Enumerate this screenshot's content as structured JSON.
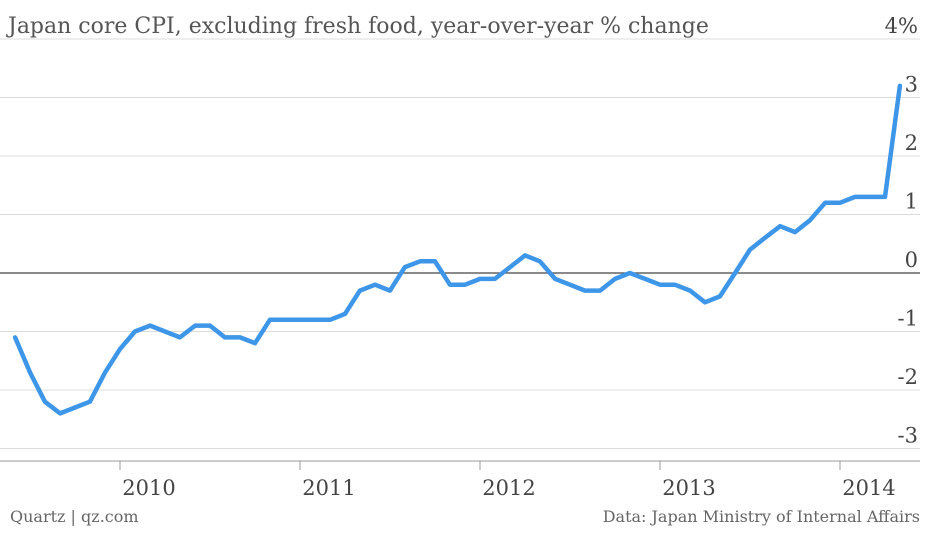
{
  "chart_data": {
    "type": "line",
    "title": "Japan core CPI, excluding fresh food, year-over-year % change",
    "xlabel": "",
    "ylabel": "",
    "ylim": [
      -3.2,
      4
    ],
    "y_ticks": [
      {
        "value": 4,
        "label": "4%"
      },
      {
        "value": 3,
        "label": "3"
      },
      {
        "value": 2,
        "label": "2"
      },
      {
        "value": 1,
        "label": "1"
      },
      {
        "value": 0,
        "label": "0"
      },
      {
        "value": -1,
        "label": "-1"
      },
      {
        "value": -2,
        "label": "-2"
      },
      {
        "value": -3,
        "label": "-3"
      }
    ],
    "x_ticks": [
      {
        "value": 2010,
        "label": "2010"
      },
      {
        "value": 2011,
        "label": "2011"
      },
      {
        "value": 2012,
        "label": "2012"
      },
      {
        "value": 2013,
        "label": "2013"
      },
      {
        "value": 2014,
        "label": "2014"
      }
    ],
    "xlim": [
      2009.4,
      2014.42
    ],
    "grid": true,
    "legend": "none",
    "series": [
      {
        "color": "#3d96e8",
        "points": [
          [
            2009.417,
            -1.1
          ],
          [
            2009.5,
            -1.7
          ],
          [
            2009.583,
            -2.2
          ],
          [
            2009.667,
            -2.4
          ],
          [
            2009.75,
            -2.3
          ],
          [
            2009.833,
            -2.2
          ],
          [
            2009.917,
            -1.7
          ],
          [
            2010.0,
            -1.3
          ],
          [
            2010.083,
            -1.0
          ],
          [
            2010.167,
            -0.9
          ],
          [
            2010.25,
            -1.0
          ],
          [
            2010.333,
            -1.1
          ],
          [
            2010.417,
            -0.9
          ],
          [
            2010.5,
            -0.9
          ],
          [
            2010.583,
            -1.1
          ],
          [
            2010.667,
            -1.1
          ],
          [
            2010.75,
            -1.2
          ],
          [
            2010.833,
            -0.8
          ],
          [
            2010.917,
            -0.8
          ],
          [
            2011.0,
            -0.8
          ],
          [
            2011.083,
            -0.8
          ],
          [
            2011.167,
            -0.8
          ],
          [
            2011.25,
            -0.7
          ],
          [
            2011.333,
            -0.3
          ],
          [
            2011.417,
            -0.2
          ],
          [
            2011.5,
            -0.3
          ],
          [
            2011.583,
            0.1
          ],
          [
            2011.667,
            0.2
          ],
          [
            2011.75,
            0.2
          ],
          [
            2011.833,
            -0.2
          ],
          [
            2011.917,
            -0.2
          ],
          [
            2012.0,
            -0.1
          ],
          [
            2012.083,
            -0.1
          ],
          [
            2012.167,
            0.1
          ],
          [
            2012.25,
            0.3
          ],
          [
            2012.333,
            0.2
          ],
          [
            2012.417,
            -0.1
          ],
          [
            2012.5,
            -0.2
          ],
          [
            2012.583,
            -0.3
          ],
          [
            2012.667,
            -0.3
          ],
          [
            2012.75,
            -0.1
          ],
          [
            2012.833,
            0.0
          ],
          [
            2012.917,
            -0.1
          ],
          [
            2013.0,
            -0.2
          ],
          [
            2013.083,
            -0.2
          ],
          [
            2013.167,
            -0.3
          ],
          [
            2013.25,
            -0.5
          ],
          [
            2013.333,
            -0.4
          ],
          [
            2013.417,
            0.0
          ],
          [
            2013.5,
            0.4
          ],
          [
            2013.583,
            0.6
          ],
          [
            2013.667,
            0.8
          ],
          [
            2013.75,
            0.7
          ],
          [
            2013.833,
            0.9
          ],
          [
            2013.917,
            1.2
          ],
          [
            2014.0,
            1.2
          ],
          [
            2014.083,
            1.3
          ],
          [
            2014.167,
            1.3
          ],
          [
            2014.25,
            1.3
          ],
          [
            2014.333,
            3.2
          ]
        ]
      }
    ]
  },
  "footer": {
    "left": "Quartz | qz.com",
    "right": "Data: Japan Ministry of Internal Affairs"
  }
}
